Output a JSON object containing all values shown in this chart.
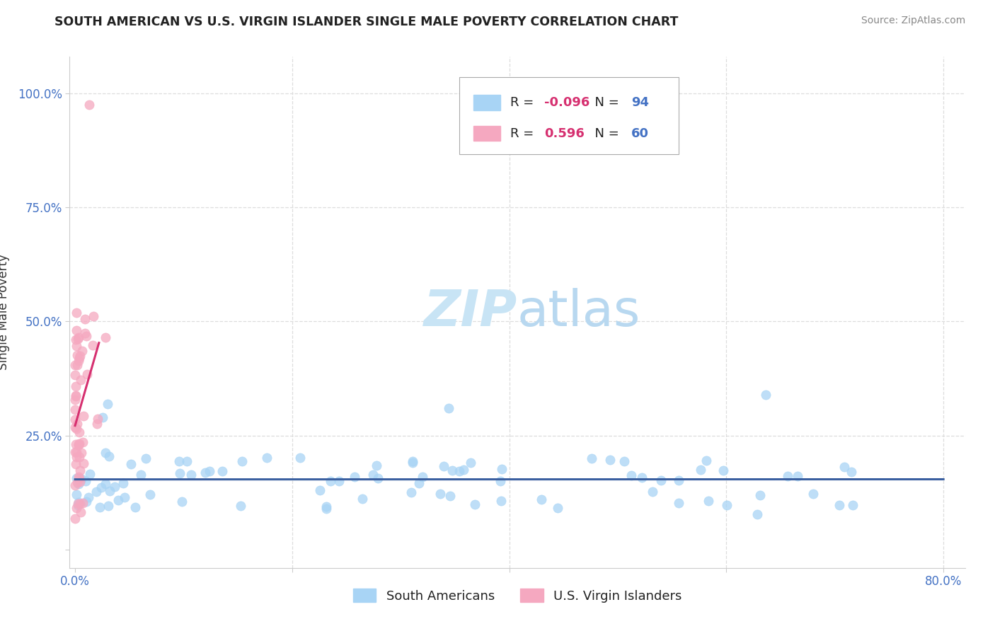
{
  "title": "SOUTH AMERICAN VS U.S. VIRGIN ISLANDER SINGLE MALE POVERTY CORRELATION CHART",
  "source": "Source: ZipAtlas.com",
  "ylabel": "Single Male Poverty",
  "xlabel": "",
  "xlim": [
    -0.005,
    0.82
  ],
  "ylim": [
    -0.04,
    1.08
  ],
  "ytick_vals": [
    0.0,
    0.25,
    0.5,
    0.75,
    1.0
  ],
  "ytick_labels": [
    "",
    "25.0%",
    "50.0%",
    "75.0%",
    "100.0%"
  ],
  "xtick_vals": [
    0.0,
    0.2,
    0.4,
    0.6,
    0.8
  ],
  "xtick_labels": [
    "0.0%",
    "",
    "",
    "",
    "80.0%"
  ],
  "legend_labels": [
    "South Americans",
    "U.S. Virgin Islanders"
  ],
  "R_blue": -0.096,
  "N_blue": 94,
  "R_pink": 0.596,
  "N_pink": 60,
  "blue_dot_color": "#A8D4F5",
  "pink_dot_color": "#F5A8C0",
  "blue_line_color": "#3A5FA0",
  "pink_line_color": "#D63070",
  "watermark_color": "#C8E4F5",
  "background_color": "#FFFFFF",
  "grid_color": "#DDDDDD",
  "title_color": "#222222",
  "source_color": "#888888",
  "ylabel_color": "#333333",
  "tick_color": "#4472C4",
  "legend_text_color": "#222222",
  "legend_R_color": "#D63070",
  "legend_N_color": "#4472C4"
}
